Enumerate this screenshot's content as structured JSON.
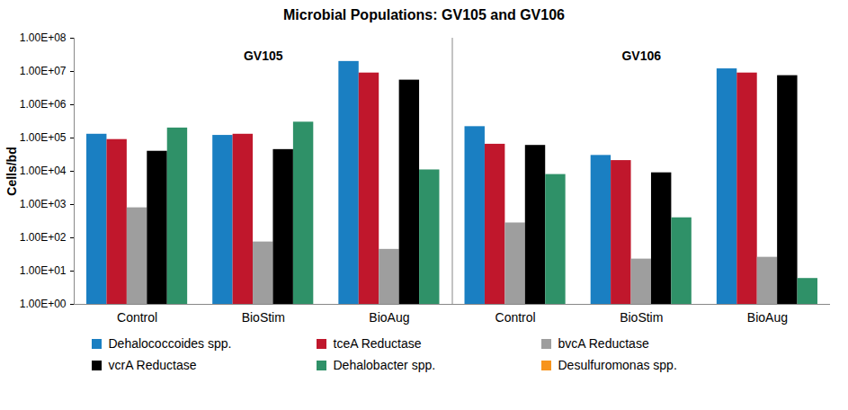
{
  "chart_data": {
    "type": "bar",
    "title": "Microbial Populations: GV105 and GV106",
    "y_label": "Cells/bd",
    "log": "y",
    "grid": false,
    "legend": "bottom",
    "panels": [
      "GV105",
      "GV106"
    ],
    "categories": [
      "Control",
      "BioStim",
      "BioAug",
      "Control",
      "BioStim",
      "BioAug"
    ],
    "series": [
      {
        "name": "Dehalococcoides spp.",
        "color": "#1a7fc2",
        "values": [
          130000,
          120000,
          20000000,
          220000,
          30000,
          12000000
        ]
      },
      {
        "name": "tceA Reductase",
        "color": "#c0172c",
        "values": [
          90000,
          130000,
          9000000,
          65000,
          21000,
          9000000
        ]
      },
      {
        "name": "bvcA Reductase",
        "color": "#9e9e9e",
        "values": [
          800,
          75,
          45,
          280,
          23,
          26
        ]
      },
      {
        "name": "vcrA Reductase",
        "color": "#000000",
        "values": [
          40000,
          45000,
          5500000,
          60000,
          9000,
          7500000
        ]
      },
      {
        "name": "Dehalobacter spp.",
        "color": "#2f9168",
        "values": [
          200000,
          300000,
          11000,
          8000,
          400,
          6
        ]
      },
      {
        "name": "Desulfuromonas spp.",
        "color": "#f7941d",
        "values": [
          null,
          null,
          null,
          null,
          null,
          null
        ]
      }
    ],
    "ylim": [
      1,
      100000000
    ],
    "yticks": [
      {
        "value": 1,
        "label": "1.00E+00"
      },
      {
        "value": 10,
        "label": "1.00E+01"
      },
      {
        "value": 100,
        "label": "1.00E+02"
      },
      {
        "value": 1000,
        "label": "1.00E+03"
      },
      {
        "value": 10000,
        "label": "1.00E+04"
      },
      {
        "value": 100000,
        "label": "1.00E+05"
      },
      {
        "value": 1000000,
        "label": "1.00E+06"
      },
      {
        "value": 10000000,
        "label": "1.00E+07"
      },
      {
        "value": 100000000,
        "label": "1.00E+08"
      }
    ]
  }
}
